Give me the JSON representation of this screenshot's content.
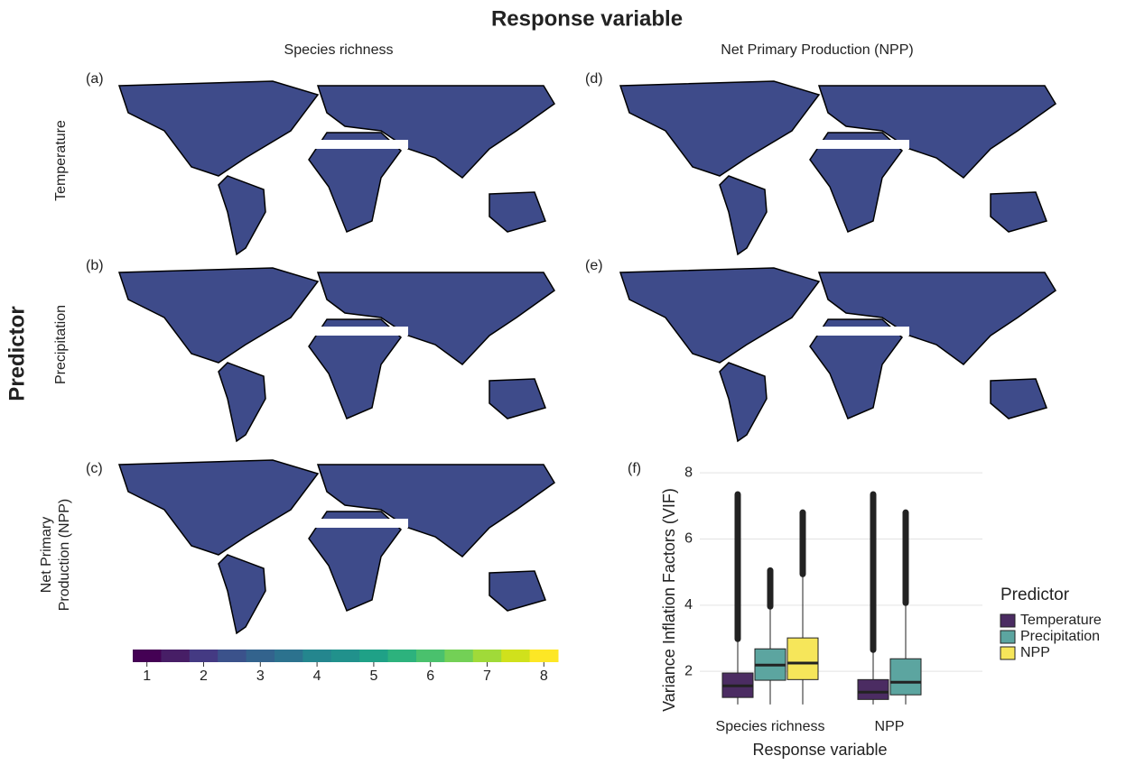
{
  "title": "Response variable",
  "row_title": "Predictor",
  "columns": [
    "Species richness",
    "Net Primary Production (NPP)"
  ],
  "rows": [
    [
      "Temperature"
    ],
    [
      "Precipitation"
    ],
    [
      "Net Primary",
      "Production (NPP)"
    ]
  ],
  "panel_labels": [
    "(a)",
    "(b)",
    "(c)",
    "(d)",
    "(e)",
    "(f)"
  ],
  "colorbar": {
    "lim": [
      0.75,
      8.25
    ],
    "ticks": [
      1,
      2,
      3,
      4,
      5,
      6,
      7,
      8
    ],
    "colors": [
      "#440154",
      "#471e66",
      "#443a83",
      "#3b528b",
      "#33638d",
      "#2c728e",
      "#24868e",
      "#21918c",
      "#1fa187",
      "#2db27d",
      "#4ac16d",
      "#73d056",
      "#a0da39",
      "#d0e11c",
      "#fde725"
    ]
  },
  "chart_data": {
    "type": "box",
    "xlabel": "Response variable",
    "ylabel": "Variance Inflation Factors (VIF)",
    "categories": [
      "Species richness",
      "NPP"
    ],
    "ylim": [
      0.75,
      8.25
    ],
    "yticks": [
      2,
      4,
      6,
      8
    ],
    "grid": true,
    "legend_title": "Predictor",
    "legend": "right",
    "series": [
      {
        "name": "Temperature",
        "color": "#4b2c62",
        "boxes": [
          {
            "min": 1.0,
            "q1": 1.21,
            "median": 1.56,
            "q3": 1.95,
            "max": 2.98,
            "outlier_max": 7.35
          },
          {
            "min": 1.0,
            "q1": 1.15,
            "median": 1.37,
            "q3": 1.75,
            "max": 2.65,
            "outlier_max": 7.35
          }
        ]
      },
      {
        "name": "Precipitation",
        "color": "#5ca5a0",
        "boxes": [
          {
            "min": 1.0,
            "q1": 1.73,
            "median": 2.19,
            "q3": 2.68,
            "max": 3.96,
            "outlier_max": 5.05
          },
          {
            "min": 1.0,
            "q1": 1.29,
            "median": 1.67,
            "q3": 2.38,
            "max": 4.07,
            "outlier_max": 6.8
          }
        ]
      },
      {
        "name": "NPP",
        "color": "#f6e65a",
        "boxes": [
          {
            "min": 1.0,
            "q1": 1.75,
            "median": 2.25,
            "q3": 3.01,
            "max": 4.94,
            "outlier_max": 6.8
          },
          null
        ]
      }
    ]
  }
}
